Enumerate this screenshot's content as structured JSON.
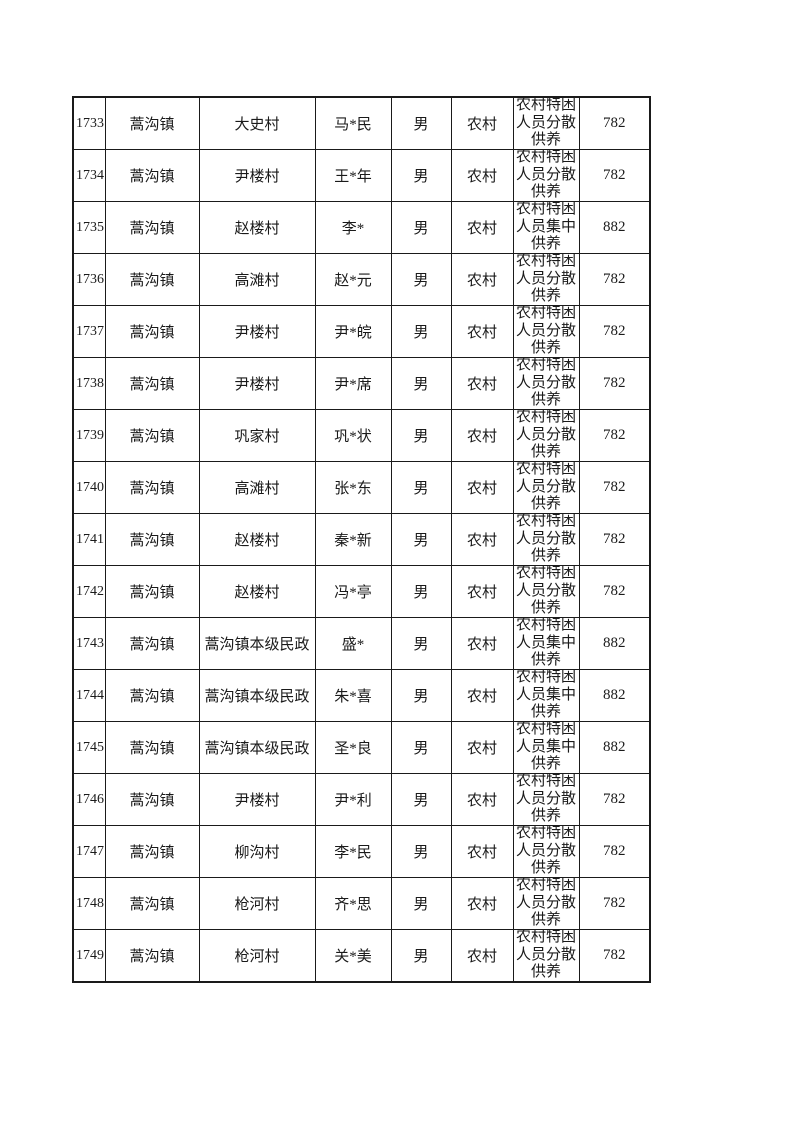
{
  "table": {
    "rows": [
      {
        "no": "1733",
        "town": "蒿沟镇",
        "village": "大史村",
        "name": "马*民",
        "gender": "男",
        "area": "农村",
        "type": "农村特困人员分散供养",
        "amount": "782"
      },
      {
        "no": "1734",
        "town": "蒿沟镇",
        "village": "尹楼村",
        "name": "王*年",
        "gender": "男",
        "area": "农村",
        "type": "农村特困人员分散供养",
        "amount": "782"
      },
      {
        "no": "1735",
        "town": "蒿沟镇",
        "village": "赵楼村",
        "name": "李*",
        "gender": "男",
        "area": "农村",
        "type": "农村特困人员集中供养",
        "amount": "882"
      },
      {
        "no": "1736",
        "town": "蒿沟镇",
        "village": "高滩村",
        "name": "赵*元",
        "gender": "男",
        "area": "农村",
        "type": "农村特困人员分散供养",
        "amount": "782"
      },
      {
        "no": "1737",
        "town": "蒿沟镇",
        "village": "尹楼村",
        "name": "尹*皖",
        "gender": "男",
        "area": "农村",
        "type": "农村特困人员分散供养",
        "amount": "782"
      },
      {
        "no": "1738",
        "town": "蒿沟镇",
        "village": "尹楼村",
        "name": "尹*席",
        "gender": "男",
        "area": "农村",
        "type": "农村特困人员分散供养",
        "amount": "782"
      },
      {
        "no": "1739",
        "town": "蒿沟镇",
        "village": "巩家村",
        "name": "巩*状",
        "gender": "男",
        "area": "农村",
        "type": "农村特困人员分散供养",
        "amount": "782"
      },
      {
        "no": "1740",
        "town": "蒿沟镇",
        "village": "高滩村",
        "name": "张*东",
        "gender": "男",
        "area": "农村",
        "type": "农村特困人员分散供养",
        "amount": "782"
      },
      {
        "no": "1741",
        "town": "蒿沟镇",
        "village": "赵楼村",
        "name": "秦*新",
        "gender": "男",
        "area": "农村",
        "type": "农村特困人员分散供养",
        "amount": "782"
      },
      {
        "no": "1742",
        "town": "蒿沟镇",
        "village": "赵楼村",
        "name": "冯*亭",
        "gender": "男",
        "area": "农村",
        "type": "农村特困人员分散供养",
        "amount": "782"
      },
      {
        "no": "1743",
        "town": "蒿沟镇",
        "village": "蒿沟镇本级民政",
        "name": "盛*",
        "gender": "男",
        "area": "农村",
        "type": "农村特困人员集中供养",
        "amount": "882"
      },
      {
        "no": "1744",
        "town": "蒿沟镇",
        "village": "蒿沟镇本级民政",
        "name": "朱*喜",
        "gender": "男",
        "area": "农村",
        "type": "农村特困人员集中供养",
        "amount": "882"
      },
      {
        "no": "1745",
        "town": "蒿沟镇",
        "village": "蒿沟镇本级民政",
        "name": "圣*良",
        "gender": "男",
        "area": "农村",
        "type": "农村特困人员集中供养",
        "amount": "882"
      },
      {
        "no": "1746",
        "town": "蒿沟镇",
        "village": "尹楼村",
        "name": "尹*利",
        "gender": "男",
        "area": "农村",
        "type": "农村特困人员分散供养",
        "amount": "782"
      },
      {
        "no": "1747",
        "town": "蒿沟镇",
        "village": "柳沟村",
        "name": "李*民",
        "gender": "男",
        "area": "农村",
        "type": "农村特困人员分散供养",
        "amount": "782"
      },
      {
        "no": "1748",
        "town": "蒿沟镇",
        "village": "枪河村",
        "name": "齐*思",
        "gender": "男",
        "area": "农村",
        "type": "农村特困人员分散供养",
        "amount": "782"
      },
      {
        "no": "1749",
        "town": "蒿沟镇",
        "village": "枪河村",
        "name": "关*美",
        "gender": "男",
        "area": "农村",
        "type": "农村特困人员分散供养",
        "amount": "782"
      }
    ]
  }
}
